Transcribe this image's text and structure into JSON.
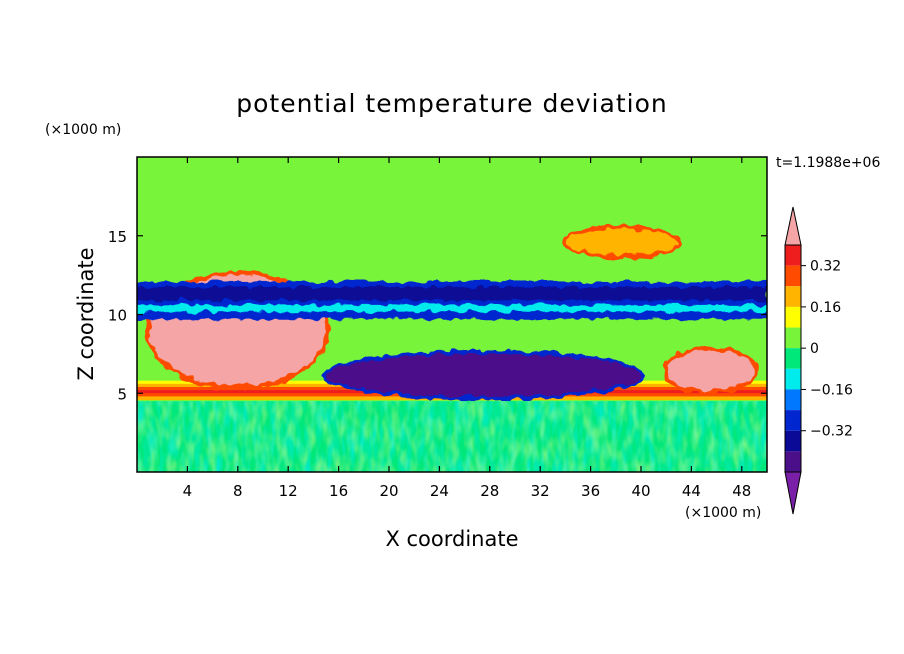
{
  "chart_data": {
    "type": "heatmap",
    "title": "potential temperature deviation",
    "xlabel": "X coordinate",
    "ylabel": "Z coordinate",
    "x_unit": "(×1000 m)",
    "y_unit": "(×1000 m)",
    "time_label": "t=1.1988e+06",
    "xlim": [
      0,
      50
    ],
    "ylim": [
      0,
      20
    ],
    "x_ticks": [
      "4",
      "8",
      "12",
      "16",
      "20",
      "24",
      "28",
      "32",
      "36",
      "40",
      "44",
      "48"
    ],
    "y_ticks": [
      "5",
      "10",
      "15"
    ],
    "colorbar": {
      "labels": [
        "0.32",
        "0.16",
        "0",
        "−0.16",
        "−0.32"
      ],
      "levels": [
        -0.48,
        -0.4,
        -0.32,
        -0.24,
        -0.16,
        -0.08,
        0,
        0.08,
        0.16,
        0.24,
        0.32,
        0.4
      ],
      "colors": [
        "#7a1fa8",
        "#4b0f8a",
        "#0a0a96",
        "#0026d0",
        "#0078ff",
        "#00ecec",
        "#00e77a",
        "#78f53a",
        "#ffff00",
        "#ffb400",
        "#ff4b00",
        "#ee1e1e",
        "#f5a5a5"
      ]
    },
    "features": [
      {
        "feature": "warm surface layer",
        "x": [
          0,
          50
        ],
        "z": [
          4.6,
          5.8
        ],
        "value": 0.36
      },
      {
        "feature": "cold pool",
        "x": [
          15,
          40
        ],
        "z": [
          4.8,
          7.5
        ],
        "value": -0.44
      },
      {
        "feature": "warm plume",
        "x": [
          1,
          15
        ],
        "z": [
          5.5,
          12.5
        ],
        "value": 0.42
      },
      {
        "feature": "warm plume",
        "x": [
          42,
          49
        ],
        "z": [
          5.2,
          7.7
        ],
        "value": 0.42
      },
      {
        "feature": "cold band",
        "x": [
          0,
          50
        ],
        "z": [
          9.7,
          12.1
        ],
        "value": -0.3
      },
      {
        "feature": "warm anomaly aloft",
        "x": [
          34,
          43
        ],
        "z": [
          13.8,
          15.4
        ],
        "value": 0.2
      },
      {
        "feature": "near-surface noise",
        "x": [
          0,
          50
        ],
        "z": [
          0,
          4.5
        ],
        "value": 0.02
      }
    ]
  }
}
